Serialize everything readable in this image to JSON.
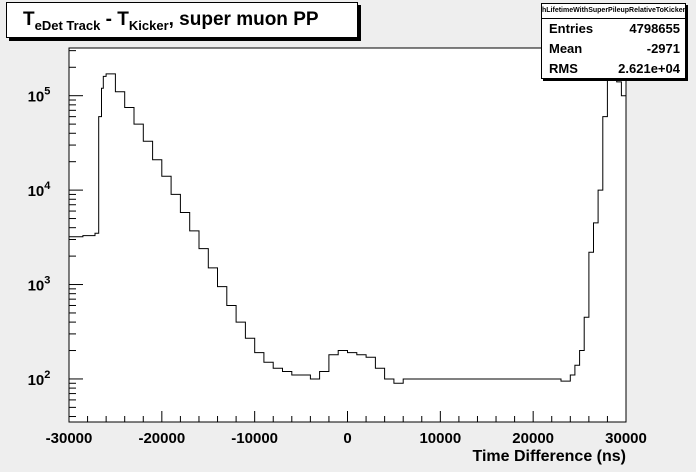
{
  "title": {
    "main": "T",
    "sub1": "eDet Track",
    "mid": " - T",
    "sub2": "Kicker",
    "tail": ", super muon PP"
  },
  "stats": {
    "name": "hLifetimeWithSuperPileupRelativeToKicker",
    "rows": [
      {
        "key": "Entries",
        "value": "4798655"
      },
      {
        "key": "Mean",
        "value": "-2971"
      },
      {
        "key": "RMS",
        "value": "2.621e+04"
      }
    ]
  },
  "chart_data": {
    "type": "line",
    "title": "TeDet Track - TKicker, super muon PP",
    "xlabel": "Time Difference (ns)",
    "ylabel": "",
    "xlim": [
      -30000,
      30000
    ],
    "ylim": [
      35,
      320000
    ],
    "yscale": "log",
    "xticks": [
      -30000,
      -20000,
      -10000,
      0,
      10000,
      20000,
      30000
    ],
    "xtick_labels": [
      "-30000",
      "-20000",
      "-10000",
      "0",
      "10000",
      "20000",
      "30000"
    ],
    "yticks": [
      100,
      1000,
      10000,
      100000
    ],
    "ytick_labels": [
      "10",
      "10",
      "10",
      "10"
    ],
    "ytick_exponents": [
      "2",
      "3",
      "4",
      "5"
    ],
    "grid": false,
    "legend": "none",
    "series": [
      {
        "x": [
          -30000,
          -28500,
          -27200,
          -26800,
          -26500,
          -26300,
          -26000,
          -25000,
          -24000,
          -23000,
          -22000,
          -21000,
          -20000,
          -19000,
          -18000,
          -17000,
          -16000,
          -15000,
          -14000,
          -13000,
          -12000,
          -11000,
          -10000,
          -9000,
          -8000,
          -7000,
          -6000,
          -5000,
          -4000,
          -3000,
          -2000,
          -1000,
          0,
          1000,
          2000,
          3000,
          4000,
          5000,
          6000,
          8000,
          10000,
          12000,
          14000,
          16000,
          18000,
          20000,
          22000,
          23000,
          24000,
          24500,
          25000,
          25500,
          26000,
          26500,
          27000,
          27500,
          28000,
          28500,
          29000,
          29500,
          30000
        ],
        "y": [
          3200,
          3300,
          3500,
          60000,
          120000,
          160000,
          170000,
          110000,
          75000,
          50000,
          33000,
          21000,
          14000,
          9000,
          5800,
          3700,
          2400,
          1500,
          950,
          600,
          400,
          270,
          190,
          150,
          130,
          120,
          110,
          110,
          100,
          120,
          180,
          200,
          190,
          180,
          170,
          130,
          100,
          90,
          100,
          100,
          100,
          100,
          100,
          100,
          100,
          100,
          100,
          95,
          110,
          140,
          200,
          450,
          2200,
          4500,
          10000,
          60000,
          150000,
          170000,
          140000,
          100000,
          85000
        ]
      }
    ]
  }
}
